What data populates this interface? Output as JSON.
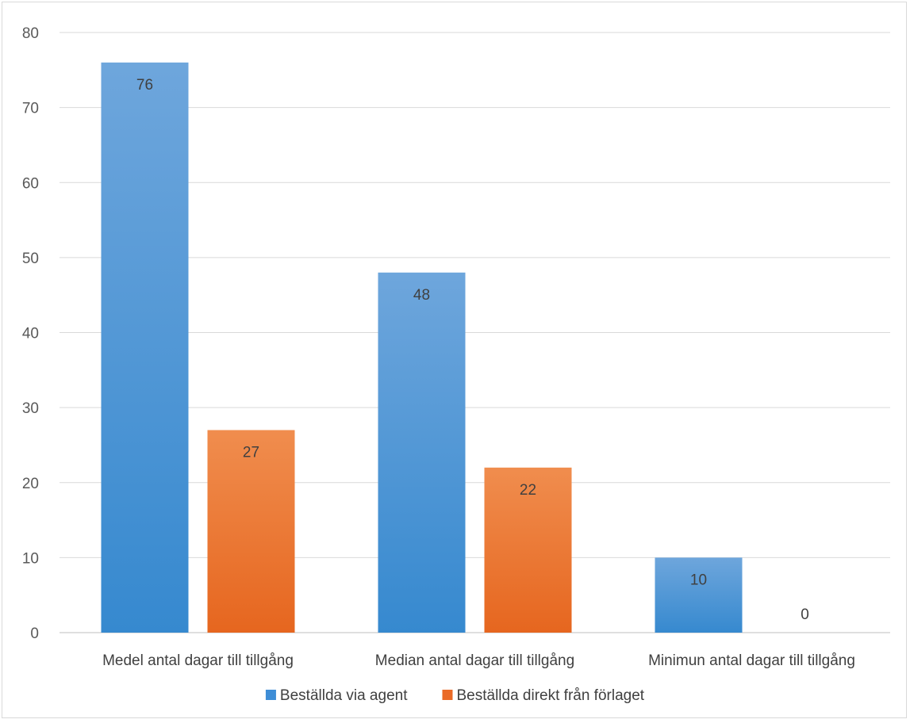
{
  "chart_data": {
    "type": "bar",
    "title": "",
    "xlabel": "",
    "ylabel": "",
    "categories": [
      "Medel antal dagar till tillgång",
      "Median antal dagar till tillgång",
      "Minimun antal dagar till tillgång"
    ],
    "series": [
      {
        "name": "Beställda via agent",
        "values": [
          76,
          48,
          10
        ],
        "color": "#3e8dd6",
        "color_top": "#6ea6dc"
      },
      {
        "name": "Beställda direkt från förlaget",
        "values": [
          27,
          22,
          0
        ],
        "color": "#ea6a26",
        "color_top": "#f08d4e"
      }
    ],
    "ylim": [
      0,
      80
    ],
    "yticks": [
      0,
      10,
      20,
      30,
      40,
      50,
      60,
      70,
      80
    ],
    "grid": true,
    "legend_position": "bottom",
    "data_labels": true
  }
}
